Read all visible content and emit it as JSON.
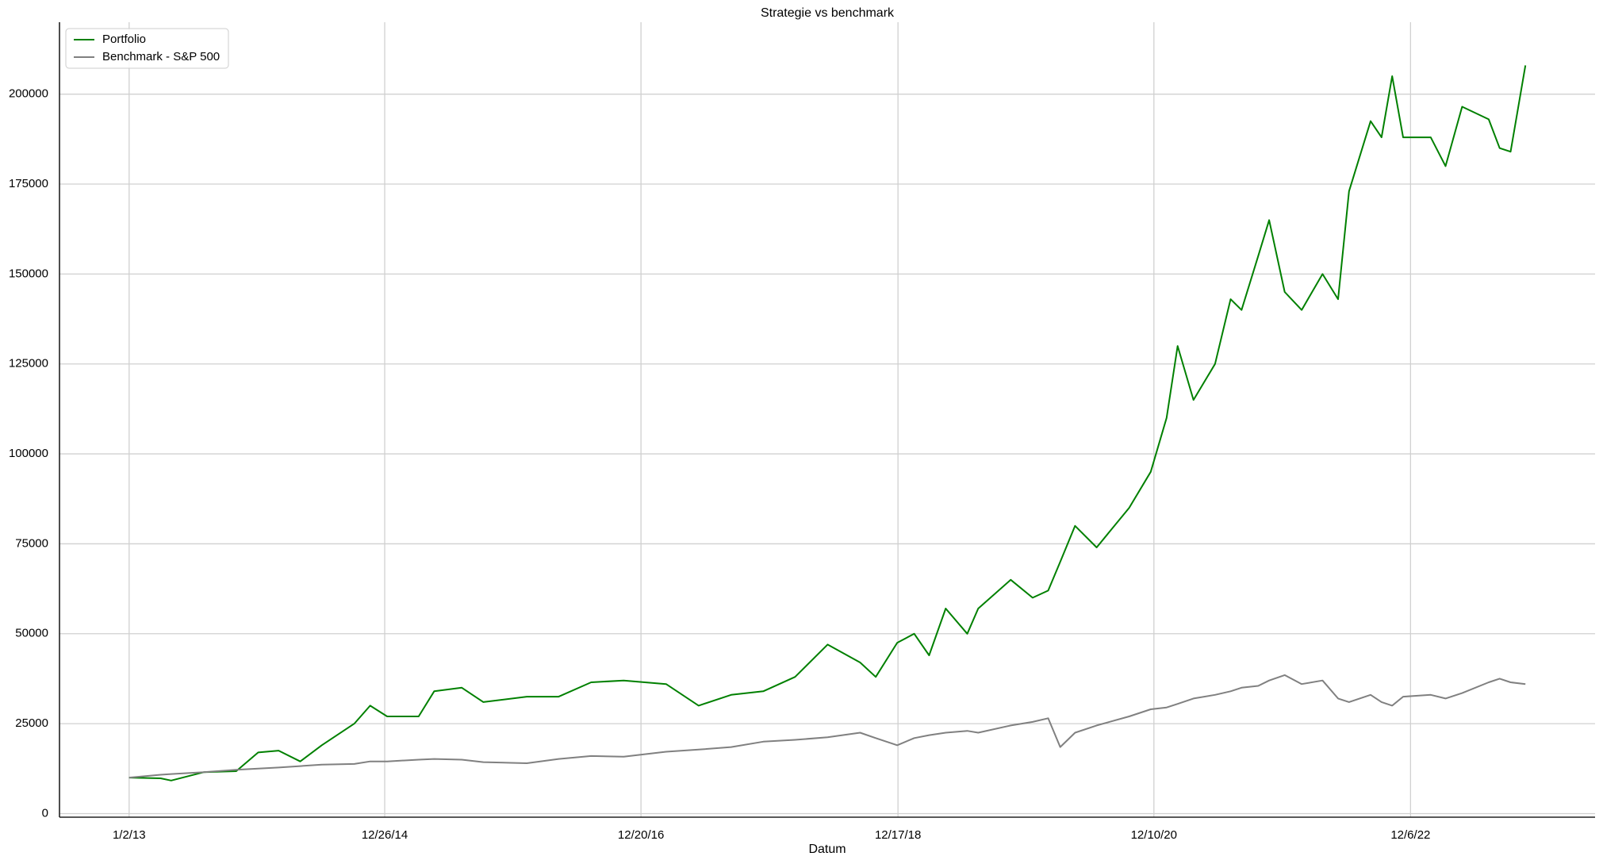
{
  "chart_data": {
    "type": "line",
    "title": "Strategie vs benchmark",
    "x_label": "Datum",
    "x": [
      "1/2/13",
      "4/1/13",
      "5/1/13",
      "8/1/13",
      "11/1/13",
      "1/2/14",
      "3/1/14",
      "5/1/14",
      "7/1/14",
      "10/1/14",
      "11/15/14",
      "1/2/15",
      "4/1/15",
      "5/15/15",
      "8/1/15",
      "10/1/15",
      "2/1/16",
      "5/1/16",
      "8/1/16",
      "11/1/16",
      "3/1/17",
      "6/1/17",
      "9/1/17",
      "12/1/17",
      "3/1/18",
      "6/1/18",
      "9/1/18",
      "10/15/18",
      "12/15/18",
      "2/1/19",
      "3/15/19",
      "5/1/19",
      "7/1/19",
      "8/1/19",
      "11/1/19",
      "1/2/20",
      "2/15/20",
      "3/20/20",
      "5/1/20",
      "7/1/20",
      "10/1/20",
      "12/1/20",
      "1/15/21",
      "2/15/21",
      "4/1/21",
      "6/1/21",
      "7/15/21",
      "8/15/21",
      "10/1/21",
      "11/1/21",
      "12/15/21",
      "2/1/22",
      "4/1/22",
      "5/15/22",
      "6/15/22",
      "8/15/22",
      "9/15/22",
      "10/15/22",
      "11/15/22",
      "2/1/23",
      "3/15/23",
      "5/1/23",
      "7/15/23",
      "8/15/23",
      "9/15/23",
      "10/27/23"
    ],
    "series": [
      {
        "name": "Portfolio",
        "color": "#008000",
        "values": [
          10000,
          9800,
          9200,
          11500,
          11800,
          17000,
          17500,
          14500,
          19000,
          25000,
          30000,
          27000,
          27000,
          34000,
          35000,
          31000,
          32500,
          32500,
          36500,
          37000,
          36000,
          30000,
          33000,
          34000,
          38000,
          47000,
          42000,
          38000,
          47500,
          50000,
          44000,
          57000,
          50000,
          57000,
          65000,
          60000,
          62000,
          70000,
          80000,
          74000,
          85000,
          95000,
          110000,
          130000,
          115000,
          125000,
          143000,
          140000,
          155000,
          165000,
          145000,
          140000,
          150000,
          143000,
          173000,
          192500,
          188000,
          205000,
          188000,
          188000,
          180000,
          196500,
          193000,
          185000,
          184000,
          208000
        ]
      },
      {
        "name": "Benchmark - S&P 500",
        "color": "#808080",
        "values": [
          10000,
          10800,
          11000,
          11500,
          12200,
          12500,
          12800,
          13200,
          13600,
          13800,
          14500,
          14500,
          15000,
          15200,
          15000,
          14300,
          14000,
          15200,
          16000,
          15800,
          17200,
          17800,
          18500,
          20000,
          20500,
          21200,
          22500,
          21000,
          19000,
          21000,
          21800,
          22500,
          23000,
          22500,
          24500,
          25500,
          26500,
          18500,
          22500,
          24500,
          27000,
          29000,
          29500,
          30500,
          32000,
          33000,
          34000,
          35000,
          35500,
          37000,
          38500,
          36000,
          37000,
          32000,
          31000,
          33000,
          31000,
          30000,
          32500,
          33000,
          32000,
          33500,
          36500,
          37500,
          36500,
          36000
        ]
      }
    ],
    "xlim": [
      "6/19/12",
      "5/11/24"
    ],
    "xticks": [
      "1/2/13",
      "12/26/14",
      "12/20/16",
      "12/17/18",
      "12/10/20",
      "12/6/22"
    ],
    "ylim": [
      -1000,
      220000
    ],
    "yticks": [
      0,
      25000,
      50000,
      75000,
      100000,
      125000,
      150000,
      175000,
      200000
    ],
    "grid": true,
    "legend": "upper left"
  }
}
